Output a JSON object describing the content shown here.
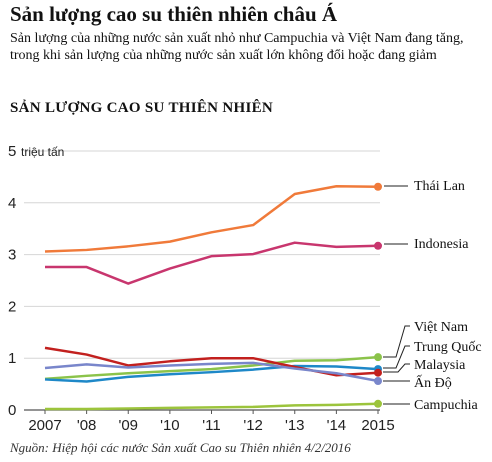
{
  "title": "Sản lượng cao su thiên nhiên châu Á",
  "subtitle": "Sản lượng của những nước sản xuất nhỏ như Campuchia và Việt Nam đang tăng, trong khi sản lượng của những nước sản xuất lớn không đổi hoặc đang giảm",
  "section_title": "SẢN LƯỢNG CAO SU THIÊN NHIÊN",
  "source": "Nguồn: Hiệp hội các nước Sản xuất Cao su Thiên nhiên 4/2/2016",
  "chart_data": {
    "type": "line",
    "x": [
      2007,
      2008,
      2009,
      2010,
      2011,
      2012,
      2013,
      2014,
      2015
    ],
    "xtick_labels": [
      "2007",
      "'08",
      "'09",
      "'10",
      "'11",
      "'12",
      "'13",
      "'14",
      "2015"
    ],
    "ylim": [
      0,
      5
    ],
    "yticks": [
      0,
      1,
      2,
      3,
      4,
      5
    ],
    "ytick_labels": [
      "0",
      "1",
      "2",
      "3",
      "4",
      "5"
    ],
    "ylabel": "triệu tấn",
    "grid": true,
    "series": [
      {
        "name": "Thái Lan",
        "color": "#f07a3a",
        "values": [
          3.06,
          3.09,
          3.16,
          3.25,
          3.43,
          3.57,
          4.17,
          4.32,
          4.31
        ]
      },
      {
        "name": "Indonesia",
        "color": "#c8366e",
        "values": [
          2.76,
          2.76,
          2.44,
          2.73,
          2.97,
          3.01,
          3.23,
          3.15,
          3.17
        ]
      },
      {
        "name": "Việt Nam",
        "color": "#8bc34a",
        "values": [
          0.6,
          0.66,
          0.71,
          0.75,
          0.79,
          0.86,
          0.95,
          0.96,
          1.02
        ]
      },
      {
        "name": "Trung Quốc",
        "color": "#1e88c8",
        "values": [
          0.59,
          0.55,
          0.64,
          0.69,
          0.73,
          0.78,
          0.85,
          0.84,
          0.79
        ]
      },
      {
        "name": "Malaysia",
        "color": "#c2201e",
        "values": [
          1.2,
          1.07,
          0.86,
          0.94,
          1.0,
          1.0,
          0.83,
          0.67,
          0.72
        ]
      },
      {
        "name": "Ấn Độ",
        "color": "#7986cb",
        "values": [
          0.81,
          0.88,
          0.82,
          0.86,
          0.89,
          0.91,
          0.8,
          0.71,
          0.56
        ]
      },
      {
        "name": "Campuchia",
        "color": "#9cc43c",
        "values": [
          0.02,
          0.02,
          0.03,
          0.04,
          0.05,
          0.06,
          0.09,
          0.1,
          0.12
        ]
      }
    ]
  }
}
